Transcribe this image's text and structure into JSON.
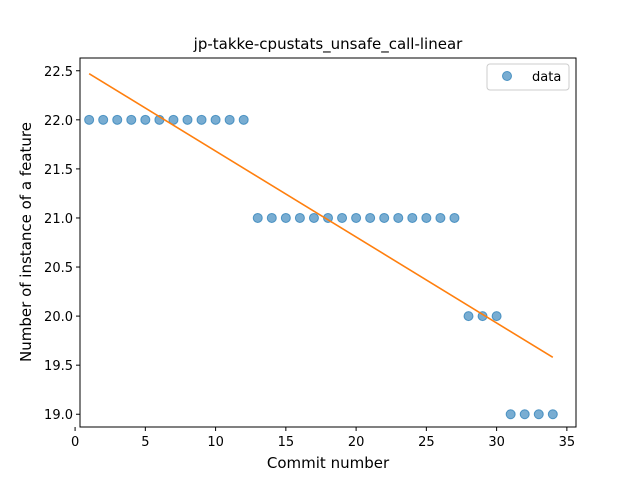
{
  "chart_data": {
    "type": "scatter",
    "title": "jp-takke-cpustats_unsafe_call-linear",
    "xlabel": "Commit number",
    "ylabel": "Number of instance of a feature",
    "xlim": [
      0.35,
      35.65
    ],
    "ylim": [
      18.87,
      22.63
    ],
    "xticks": [
      0,
      5,
      10,
      15,
      20,
      25,
      30,
      35
    ],
    "yticks": [
      19.0,
      19.5,
      20.0,
      20.5,
      21.0,
      21.5,
      22.0,
      22.5
    ],
    "grid": false,
    "legend_position": "top-right",
    "series": [
      {
        "name": "data",
        "kind": "scatter",
        "color": "#1f77b4",
        "x": [
          1,
          2,
          3,
          4,
          5,
          6,
          7,
          8,
          9,
          10,
          11,
          12,
          13,
          14,
          15,
          16,
          17,
          18,
          19,
          20,
          21,
          22,
          23,
          24,
          25,
          26,
          27,
          28,
          29,
          30,
          31,
          32,
          33,
          34
        ],
        "y": [
          22,
          22,
          22,
          22,
          22,
          22,
          22,
          22,
          22,
          22,
          22,
          22,
          21,
          21,
          21,
          21,
          21,
          21,
          21,
          21,
          21,
          21,
          21,
          21,
          21,
          21,
          21,
          20,
          20,
          20,
          19,
          19,
          19,
          19
        ]
      },
      {
        "kind": "line",
        "color": "#ff7f0e",
        "x": [
          1,
          34
        ],
        "y": [
          22.47,
          19.58
        ]
      }
    ]
  }
}
